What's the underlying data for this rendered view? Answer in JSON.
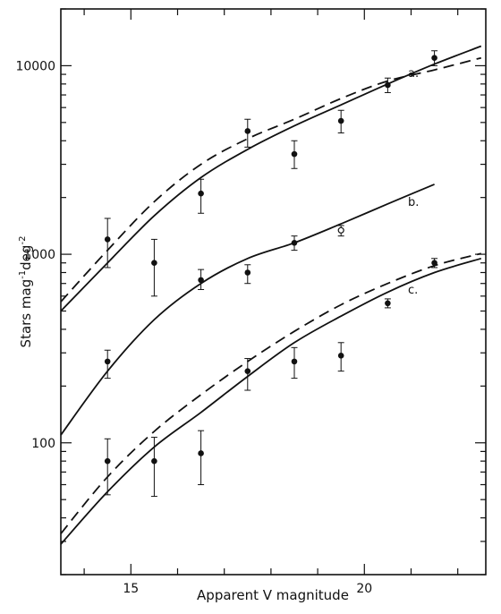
{
  "chart_data": {
    "type": "scatter",
    "title": "",
    "xlabel": "Apparent V magnitude",
    "ylabel_parts": [
      "Stars mag",
      "-1",
      "deg",
      "-2"
    ],
    "xlim": [
      13.5,
      22.6
    ],
    "ylim": [
      20,
      20000
    ],
    "yscale": "log",
    "x_ticks": [
      {
        "value": 15,
        "label": "15"
      },
      {
        "value": 20,
        "label": "20"
      }
    ],
    "y_ticks": [
      {
        "value": 100,
        "label": "100"
      },
      {
        "value": 1000,
        "label": "1000"
      },
      {
        "value": 10000,
        "label": "10000"
      }
    ],
    "grid": false,
    "series": [
      {
        "name": "a.",
        "points": [
          {
            "x": 14.5,
            "y": 1200,
            "lo": 850,
            "hi": 1550
          },
          {
            "x": 16.5,
            "y": 2100,
            "lo": 1650,
            "hi": 2500
          },
          {
            "x": 17.5,
            "y": 4500,
            "lo": 3700,
            "hi": 5200
          },
          {
            "x": 18.5,
            "y": 3400,
            "lo": 2850,
            "hi": 4000
          },
          {
            "x": 19.5,
            "y": 5100,
            "lo": 4400,
            "hi": 5800
          },
          {
            "x": 20.5,
            "y": 7900,
            "lo": 7200,
            "hi": 8600
          },
          {
            "x": 21.5,
            "y": 11000,
            "lo": 10000,
            "hi": 12000
          }
        ],
        "model_solid": [
          [
            13.5,
            500
          ],
          [
            14.5,
            900
          ],
          [
            15.5,
            1600
          ],
          [
            16.5,
            2550
          ],
          [
            17.5,
            3600
          ],
          [
            18.5,
            4800
          ],
          [
            19.5,
            6200
          ],
          [
            20.5,
            8000
          ],
          [
            21.5,
            10200
          ],
          [
            22.5,
            12700
          ]
        ],
        "model_dashed": [
          [
            13.5,
            560
          ],
          [
            14.5,
            1050
          ],
          [
            15.5,
            1900
          ],
          [
            16.5,
            3000
          ],
          [
            17.5,
            4100
          ],
          [
            18.5,
            5200
          ],
          [
            19.5,
            6700
          ],
          [
            20.5,
            8300
          ],
          [
            21.5,
            9500
          ],
          [
            22.5,
            11000
          ]
        ]
      },
      {
        "name": "b.",
        "points": [
          {
            "x": 14.5,
            "y": 270,
            "lo": 220,
            "hi": 310
          },
          {
            "x": 15.5,
            "y": 900,
            "lo": 600,
            "hi": 1200
          },
          {
            "x": 16.5,
            "y": 730,
            "lo": 650,
            "hi": 830
          },
          {
            "x": 17.5,
            "y": 800,
            "lo": 700,
            "hi": 880
          },
          {
            "x": 18.5,
            "y": 1150,
            "lo": 1050,
            "hi": 1250
          },
          {
            "x": 19.5,
            "y": 1340,
            "lo": 1250,
            "hi": 1420,
            "open": true
          }
        ],
        "model_solid": [
          [
            13.5,
            110
          ],
          [
            14.5,
            240
          ],
          [
            15.5,
            450
          ],
          [
            16.5,
            700
          ],
          [
            17.5,
            950
          ],
          [
            18.5,
            1150
          ],
          [
            19.5,
            1450
          ],
          [
            20.5,
            1850
          ],
          [
            21.5,
            2350
          ]
        ]
      },
      {
        "name": "c.",
        "points": [
          {
            "x": 14.5,
            "y": 80,
            "lo": 53,
            "hi": 105
          },
          {
            "x": 15.5,
            "y": 80,
            "lo": 52,
            "hi": 107
          },
          {
            "x": 16.5,
            "y": 88,
            "lo": 60,
            "hi": 116
          },
          {
            "x": 17.5,
            "y": 240,
            "lo": 190,
            "hi": 280
          },
          {
            "x": 18.5,
            "y": 270,
            "lo": 220,
            "hi": 320
          },
          {
            "x": 19.5,
            "y": 290,
            "lo": 240,
            "hi": 340
          },
          {
            "x": 20.5,
            "y": 550,
            "lo": 520,
            "hi": 580
          },
          {
            "x": 21.5,
            "y": 900,
            "lo": 850,
            "hi": 950
          }
        ],
        "model_solid": [
          [
            13.5,
            29
          ],
          [
            14.5,
            55
          ],
          [
            15.5,
            95
          ],
          [
            16.5,
            145
          ],
          [
            17.5,
            225
          ],
          [
            18.5,
            340
          ],
          [
            19.5,
            470
          ],
          [
            20.5,
            630
          ],
          [
            21.5,
            800
          ],
          [
            22.5,
            950
          ]
        ],
        "model_dashed": [
          [
            13.5,
            33
          ],
          [
            14.5,
            66
          ],
          [
            15.5,
            115
          ],
          [
            16.5,
            180
          ],
          [
            17.5,
            270
          ],
          [
            18.5,
            390
          ],
          [
            19.5,
            540
          ],
          [
            20.5,
            700
          ],
          [
            21.5,
            870
          ],
          [
            22.5,
            1010
          ]
        ]
      }
    ]
  },
  "colors": {
    "ink": "#111111",
    "background": "#ffffff"
  }
}
